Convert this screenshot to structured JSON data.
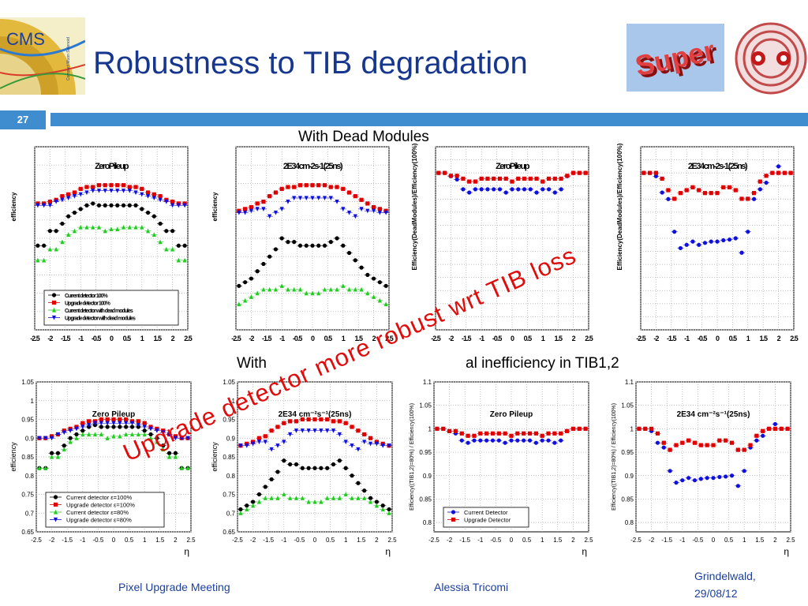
{
  "slide": {
    "title": "Robustness to TIB degradation",
    "page_number": "27",
    "subtitle_top": "With Dead Modules",
    "subtitle_mid": "With ",
    "subtitle_mid_end": "al inefficiency in TIB1,2",
    "callout": "Upgrade detector more robust wrt TIB loss",
    "logos": {
      "left_text": "CMS",
      "left_small": "Compact Muon Solenoid",
      "right_badge": "Super"
    },
    "footer": {
      "left": "Pixel Upgrade Meeting",
      "center": "Alessia Tricomi",
      "right_line1": "Grindelwald,",
      "right_line2": "29/08/12"
    }
  },
  "colors": {
    "title": "#17378f",
    "bar": "#3f8ccf",
    "callout": "#e10b0b",
    "footer": "#1d3f9c",
    "current": "#000000",
    "upgrade": "#e00000",
    "current80": "#22cc22",
    "upgrade80": "#1010dd"
  },
  "chart_data": [
    {
      "type": "scatter",
      "title": "Zero Pileup",
      "xlabel": "",
      "ylabel": "efficiency",
      "ylim": [
        0.65,
        1.05
      ],
      "yticks": [
        0.65,
        0.7,
        0.75,
        0.8,
        0.85,
        0.9,
        0.95,
        1,
        1.05
      ],
      "x": [
        -2.4,
        -2.2,
        -2.0,
        -1.8,
        -1.6,
        -1.4,
        -1.2,
        -1.0,
        -0.8,
        -0.6,
        -0.4,
        -0.2,
        0.0,
        0.2,
        0.4,
        0.6,
        0.8,
        1.0,
        1.2,
        1.4,
        1.6,
        1.8,
        2.0,
        2.2,
        2.4
      ],
      "series": [
        {
          "name": "Current detector  ε=100%",
          "color": "#000000",
          "marker": "circle",
          "values": [
            0.82,
            0.82,
            0.86,
            0.86,
            0.88,
            0.9,
            0.91,
            0.92,
            0.93,
            0.935,
            0.93,
            0.93,
            0.93,
            0.93,
            0.93,
            0.93,
            0.93,
            0.92,
            0.91,
            0.9,
            0.88,
            0.86,
            0.86,
            0.82,
            0.82
          ]
        },
        {
          "name": "Upgrade detector  ε=100%",
          "color": "#e00000",
          "marker": "square",
          "values": [
            0.9,
            0.9,
            0.905,
            0.91,
            0.92,
            0.925,
            0.93,
            0.94,
            0.945,
            0.945,
            0.95,
            0.95,
            0.95,
            0.95,
            0.95,
            0.945,
            0.945,
            0.94,
            0.93,
            0.925,
            0.92,
            0.91,
            0.905,
            0.9,
            0.9
          ]
        },
        {
          "name": "Current detector  ε=80%",
          "color": "#22cc22",
          "marker": "triangle",
          "values": [
            0.82,
            0.82,
            0.85,
            0.85,
            0.87,
            0.89,
            0.9,
            0.91,
            0.91,
            0.91,
            0.91,
            0.9,
            0.905,
            0.905,
            0.91,
            0.91,
            0.91,
            0.91,
            0.9,
            0.89,
            0.87,
            0.85,
            0.85,
            0.82,
            0.82
          ]
        },
        {
          "name": "Upgrade detector  ε=80%",
          "color": "#1010dd",
          "marker": "invtriangle",
          "values": [
            0.9,
            0.9,
            0.9,
            0.91,
            0.915,
            0.92,
            0.925,
            0.93,
            0.935,
            0.94,
            0.94,
            0.94,
            0.94,
            0.94,
            0.94,
            0.94,
            0.935,
            0.93,
            0.925,
            0.92,
            0.915,
            0.91,
            0.9,
            0.9,
            0.9
          ]
        }
      ],
      "legend": "bottom-left",
      "grid": true
    },
    {
      "type": "scatter",
      "title": "2E34 cm⁻²s⁻¹(25ns)",
      "xlabel": "",
      "ylabel": "efficiency",
      "ylim": [
        0.65,
        1.05
      ],
      "yticks": [
        0.65,
        0.7,
        0.75,
        0.8,
        0.85,
        0.9,
        0.95,
        1,
        1.05
      ],
      "x": [
        -2.4,
        -2.2,
        -2.0,
        -1.8,
        -1.6,
        -1.4,
        -1.2,
        -1.0,
        -0.8,
        -0.6,
        -0.4,
        -0.2,
        0.0,
        0.2,
        0.4,
        0.6,
        0.8,
        1.0,
        1.2,
        1.4,
        1.6,
        1.8,
        2.0,
        2.2,
        2.4
      ],
      "series": [
        {
          "name": "Current detector",
          "color": "#000000",
          "marker": "circle",
          "values": [
            0.71,
            0.72,
            0.73,
            0.75,
            0.77,
            0.79,
            0.81,
            0.84,
            0.83,
            0.83,
            0.82,
            0.82,
            0.82,
            0.82,
            0.82,
            0.83,
            0.84,
            0.82,
            0.8,
            0.78,
            0.76,
            0.74,
            0.73,
            0.72,
            0.71
          ]
        },
        {
          "name": "Upgrade detector",
          "color": "#e00000",
          "marker": "square",
          "values": [
            0.88,
            0.885,
            0.89,
            0.9,
            0.905,
            0.92,
            0.93,
            0.94,
            0.945,
            0.945,
            0.95,
            0.95,
            0.95,
            0.95,
            0.95,
            0.945,
            0.945,
            0.94,
            0.93,
            0.92,
            0.91,
            0.9,
            0.89,
            0.885,
            0.88
          ]
        },
        {
          "name": "Current detector 80%",
          "color": "#22cc22",
          "marker": "triangle",
          "values": [
            0.7,
            0.71,
            0.72,
            0.73,
            0.74,
            0.74,
            0.74,
            0.75,
            0.74,
            0.74,
            0.74,
            0.73,
            0.73,
            0.73,
            0.74,
            0.74,
            0.74,
            0.75,
            0.74,
            0.74,
            0.74,
            0.73,
            0.72,
            0.71,
            0.7
          ]
        },
        {
          "name": "Upgrade detector 80%",
          "color": "#1010dd",
          "marker": "invtriangle",
          "values": [
            0.88,
            0.88,
            0.885,
            0.89,
            0.89,
            0.87,
            0.88,
            0.89,
            0.91,
            0.92,
            0.92,
            0.92,
            0.92,
            0.92,
            0.92,
            0.92,
            0.91,
            0.89,
            0.88,
            0.87,
            0.89,
            0.885,
            0.885,
            0.88,
            0.88
          ]
        }
      ],
      "legend": "none",
      "grid": true
    },
    {
      "type": "scatter",
      "title": "Zero Pileup",
      "xlabel": "",
      "ylabel": "Efficiency((TIB1,2)=80%) / Efficiency(100%)",
      "ylim": [
        0.78,
        1.1
      ],
      "yticks": [
        0.8,
        0.85,
        0.9,
        0.95,
        1,
        1.05,
        1.1
      ],
      "x": [
        -2.4,
        -2.2,
        -2.0,
        -1.8,
        -1.6,
        -1.4,
        -1.2,
        -1.0,
        -0.8,
        -0.6,
        -0.4,
        -0.2,
        0.0,
        0.2,
        0.4,
        0.6,
        0.8,
        1.0,
        1.2,
        1.4,
        1.6,
        1.8,
        2.0,
        2.2,
        2.4
      ],
      "series": [
        {
          "name": "Current Detector",
          "color": "#1010dd",
          "marker": "circle",
          "values": [
            1.0,
            1.0,
            0.995,
            0.99,
            0.975,
            0.97,
            0.975,
            0.975,
            0.975,
            0.975,
            0.975,
            0.97,
            0.975,
            0.975,
            0.975,
            0.975,
            0.97,
            0.975,
            0.975,
            0.97,
            0.975,
            0.995,
            1.0,
            1.0,
            1.0
          ]
        },
        {
          "name": "Upgrade Detector",
          "color": "#e00000",
          "marker": "square",
          "values": [
            1.0,
            1.0,
            0.995,
            0.995,
            0.99,
            0.985,
            0.985,
            0.99,
            0.99,
            0.99,
            0.99,
            0.99,
            0.985,
            0.99,
            0.99,
            0.99,
            0.99,
            0.985,
            0.99,
            0.99,
            0.99,
            0.995,
            1.0,
            1.0,
            1.0
          ]
        }
      ],
      "legend": "bottom-left",
      "grid": true
    },
    {
      "type": "scatter",
      "title": "2E34 cm⁻²s⁻¹(25ns)",
      "xlabel": "",
      "ylabel": "Efficiency((TIB1,2)=80%) / Efficiency(100%)",
      "ylim": [
        0.78,
        1.1
      ],
      "yticks": [
        0.8,
        0.85,
        0.9,
        0.95,
        1,
        1.05,
        1.1
      ],
      "x": [
        -2.4,
        -2.2,
        -2.0,
        -1.8,
        -1.6,
        -1.4,
        -1.2,
        -1.0,
        -0.8,
        -0.6,
        -0.4,
        -0.2,
        0.0,
        0.2,
        0.4,
        0.6,
        0.8,
        1.0,
        1.2,
        1.4,
        1.6,
        1.8,
        2.0,
        2.2,
        2.4
      ],
      "series": [
        {
          "name": "Current Detector",
          "color": "#1010dd",
          "marker": "circle",
          "values": [
            1.0,
            1.0,
            0.995,
            0.97,
            0.96,
            0.91,
            0.885,
            0.89,
            0.895,
            0.89,
            0.893,
            0.895,
            0.895,
            0.897,
            0.898,
            0.9,
            0.878,
            0.91,
            0.96,
            0.975,
            0.985,
            1.0,
            1.01,
            1.0,
            1.0
          ]
        },
        {
          "name": "Upgrade Detector",
          "color": "#e00000",
          "marker": "square",
          "values": [
            1.0,
            1.0,
            1.0,
            0.99,
            0.97,
            0.955,
            0.965,
            0.97,
            0.975,
            0.97,
            0.965,
            0.965,
            0.965,
            0.975,
            0.975,
            0.97,
            0.955,
            0.955,
            0.965,
            0.985,
            0.995,
            1.0,
            1.0,
            1.0,
            1.0
          ]
        }
      ],
      "legend": "none",
      "grid": true
    }
  ],
  "top_row": {
    "titles": [
      "ZeroPileup",
      "2E34cm-2s-1(25ns)",
      "ZeroPileup",
      "2E34cm-2s-1(25ns)"
    ],
    "ylabels": [
      "efficiency",
      "efficiency",
      "Efficiency(DeadModules)/Efficiency(100%)",
      "Efficiency(DeadModules)/Efficiency(100%)"
    ],
    "legend": [
      "Current detector 100%",
      "Upgrade detector 100%",
      "Current detector with dead modules",
      "Upgrade detector with dead modules"
    ],
    "overlay_text": "Upgrade"
  },
  "axes": {
    "eta_label": "η",
    "xticks": [
      "-2.5",
      "-2",
      "-1.5",
      "-1",
      "-0.5",
      "0",
      "0.5",
      "1",
      "1.5",
      "2",
      "2.5"
    ],
    "xticks_compact": [
      "-2.5",
      "-2",
      "-1.5",
      "-1",
      "-0.5",
      "0",
      "0.5",
      "1",
      "1.5",
      "2",
      "2.5"
    ]
  }
}
